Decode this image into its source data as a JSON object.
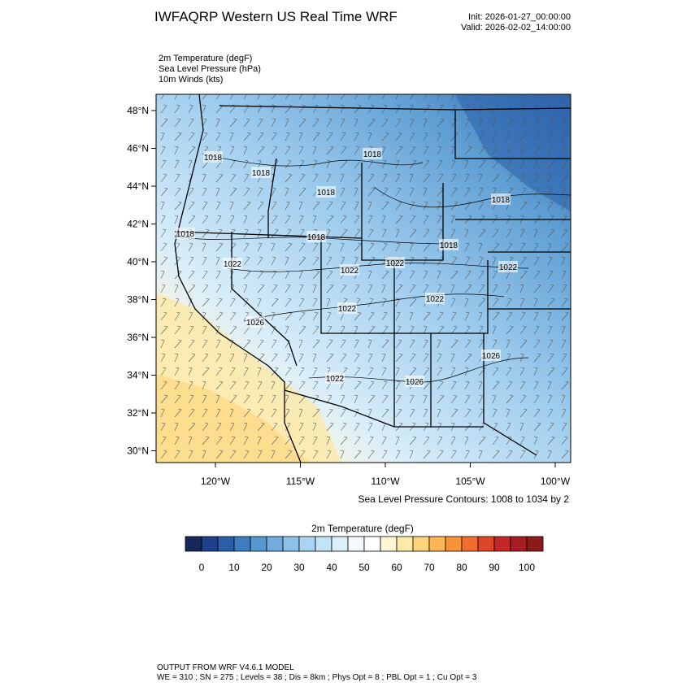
{
  "header": {
    "title": "IWFAQRP Western US Real Time WRF",
    "init": "Init: 2026-01-27_00:00:00",
    "valid": "Valid: 2026-02-02_14:00:00"
  },
  "fields": [
    "2m Temperature   (degF)",
    "Sea Level Pressure   (hPa)",
    "10m Winds   (kts)"
  ],
  "map": {
    "lat_labels": [
      "48°N",
      "46°N",
      "44°N",
      "42°N",
      "40°N",
      "38°N",
      "36°N",
      "34°N",
      "32°N",
      "30°N"
    ],
    "lon_labels": [
      "120°W",
      "115°W",
      "110°W",
      "105°W",
      "100°W"
    ],
    "contour_labels": [
      "1018",
      "1018",
      "1018",
      "1018",
      "1018",
      "1018",
      "1018",
      "1018",
      "1022",
      "1022",
      "1022",
      "1022",
      "1022",
      "1022",
      "1022",
      "1026",
      "1026",
      "1026"
    ]
  },
  "contour_note": "Sea Level Pressure Contours: 1008 to 1034 by 2",
  "colorbar": {
    "title": "2m Temperature  (degF)",
    "colors": [
      "#17275a",
      "#1f3f8a",
      "#2a5ea8",
      "#3d7dc0",
      "#5797d0",
      "#72addd",
      "#8dc2e8",
      "#a9d5f3",
      "#c3e3f7",
      "#dcf0fb",
      "#f3f9fd",
      "#ffffff",
      "#fff6d5",
      "#feeaa8",
      "#fdd47e",
      "#fcb654",
      "#f99338",
      "#ef6d2d",
      "#df4627",
      "#c52626",
      "#a71c22",
      "#8a1a1c"
    ],
    "ticks": [
      0,
      10,
      20,
      30,
      40,
      50,
      60,
      70,
      80,
      90,
      100
    ]
  },
  "footer": {
    "line1": "OUTPUT FROM WRF V4.6.1 MODEL",
    "line2": "WE = 310 ; SN = 275 ; Levels = 38 ; Dis = 8km ; Phys Opt = 8 ; PBL Opt = 1 ; Cu Opt = 3"
  }
}
